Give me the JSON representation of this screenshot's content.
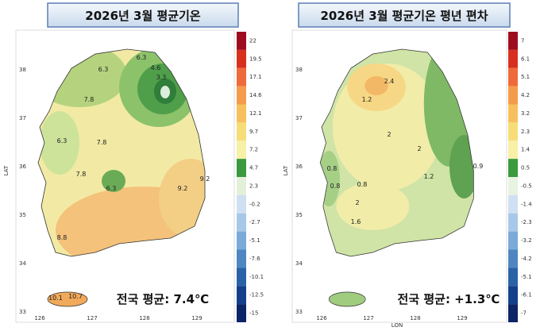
{
  "panels": [
    {
      "title": "2026년 3월 평균기온",
      "summary": "전국 평균: 7.4℃",
      "y_label": "LAT",
      "lat_ticks": [
        "38",
        "37",
        "36",
        "35",
        "34",
        "33"
      ],
      "lon_ticks": [
        "126",
        "127",
        "128",
        "129"
      ],
      "colorbar": [
        "22",
        "19.5",
        "17.1",
        "14.6",
        "12.1",
        "9.7",
        "7.2",
        "4.7",
        "2.3",
        "-0.2",
        "-2.7",
        "-5.1",
        "-7.6",
        "-10.1",
        "-12.5",
        "-15"
      ],
      "contour_labels": [
        "6.3",
        "6.3",
        "4.6",
        "3.3",
        "7.8",
        "7.8",
        "6.3",
        "7.8",
        "6.3",
        "9.2",
        "9.2",
        "8.8",
        "10.1",
        "10.7"
      ]
    },
    {
      "title": "2026년 3월 평균기온 평년 편차",
      "summary": "전국 평균: +1.3℃",
      "y_label": "LAT",
      "x_label": "LON",
      "lat_ticks": [
        "38",
        "37",
        "36",
        "35",
        "34",
        "33"
      ],
      "lon_ticks": [
        "126",
        "127",
        "128",
        "129"
      ],
      "colorbar": [
        "7",
        "6.1",
        "5.1",
        "4.2",
        "3.2",
        "2.3",
        "1.4",
        "0.5",
        "-0.5",
        "-1.4",
        "-2.3",
        "-3.2",
        "-4.2",
        "-5.1",
        "-6.1",
        "-7"
      ],
      "contour_labels": [
        "2.4",
        "1.2",
        "2",
        "2",
        "1.2",
        "0.8",
        "0.8",
        "2",
        "1.6",
        "0.9",
        "0.8"
      ]
    }
  ]
}
